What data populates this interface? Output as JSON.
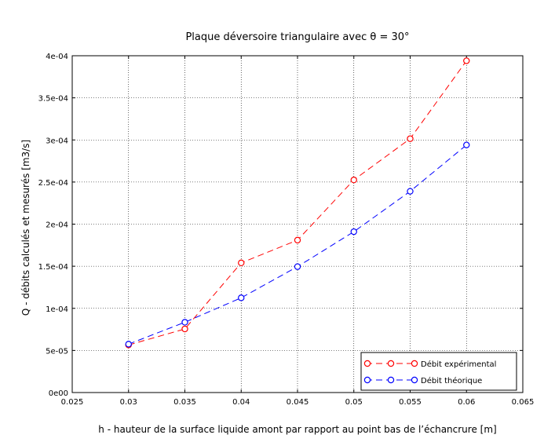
{
  "chart_data": {
    "type": "line",
    "title": "Plaque déversoire triangulaire avec θ = 30°",
    "xlabel": "h - hauteur de la surface liquide amont par rapport au point bas de l’échancrure [m]",
    "ylabel": "Q - débits calculés et mesurés [m3/s]",
    "xlim": [
      0.025,
      0.065
    ],
    "ylim": [
      0,
      0.0004
    ],
    "xticks": [
      0.025,
      0.03,
      0.035,
      0.04,
      0.045,
      0.05,
      0.055,
      0.06,
      0.065
    ],
    "xtick_labels": [
      "0.025",
      "0.03",
      "0.035",
      "0.04",
      "0.045",
      "0.05",
      "0.055",
      "0.06",
      "0.065"
    ],
    "yticks": [
      0,
      5e-05,
      0.0001,
      0.00015,
      0.0002,
      0.00025,
      0.0003,
      0.00035,
      0.0004
    ],
    "ytick_labels": [
      "0e00",
      "5e-05",
      "1e-04",
      "1.5e-04",
      "2e-04",
      "2.5e-04",
      "3e-04",
      "3.5e-04",
      "4e-04"
    ],
    "grid": true,
    "legend_position": "bottom-right",
    "x": [
      0.03,
      0.035,
      0.04,
      0.045,
      0.05,
      0.055,
      0.06
    ],
    "series": [
      {
        "name": "Débit expérimental",
        "color": "#ff0000",
        "line_style": "dashed",
        "marker": "open-circle",
        "values": [
          5.65e-05,
          7.55e-05,
          0.000154,
          0.000181,
          0.0002525,
          0.0003015,
          0.000394
        ]
      },
      {
        "name": "Débit théorique",
        "color": "#0000ff",
        "line_style": "dashed",
        "marker": "open-circle",
        "values": [
          5.75e-05,
          8.35e-05,
          0.0001125,
          0.0001495,
          0.000191,
          0.000239,
          0.000294
        ]
      }
    ]
  }
}
